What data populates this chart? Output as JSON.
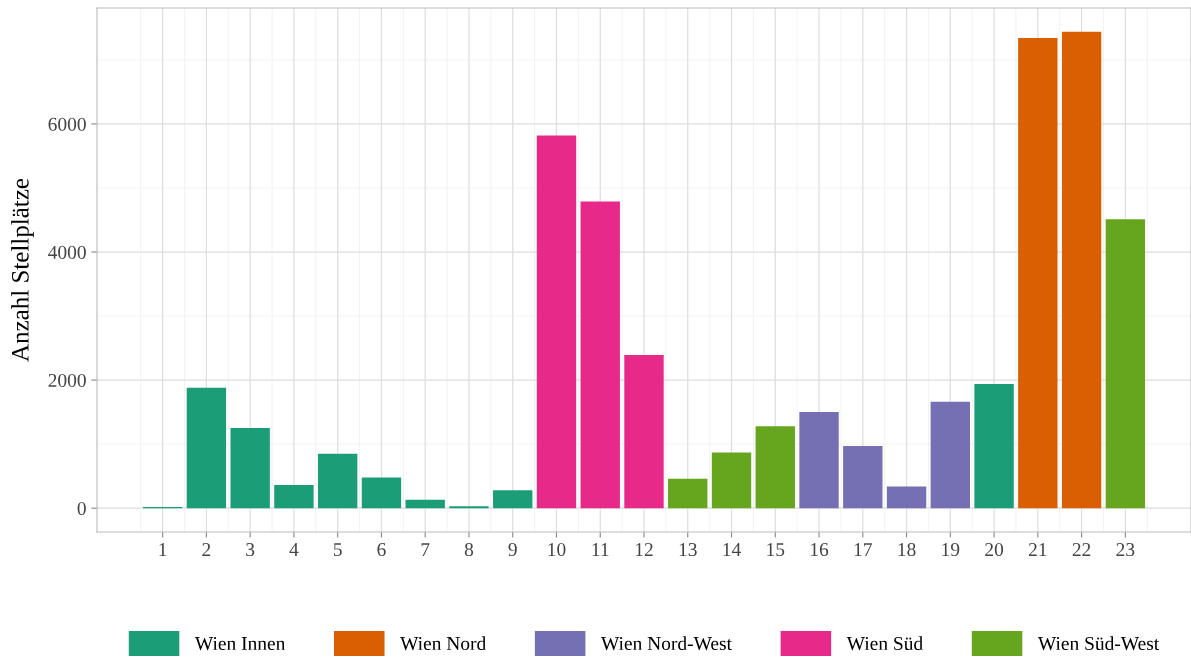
{
  "chart_data": {
    "type": "bar",
    "ylabel": "Anzahl Stellplätze",
    "xlim": [
      -0.5,
      24.5
    ],
    "ylim": [
      -372,
      7810
    ],
    "xticks": [
      1,
      2,
      3,
      4,
      5,
      6,
      7,
      8,
      9,
      10,
      11,
      12,
      13,
      14,
      15,
      16,
      17,
      18,
      19,
      20,
      21,
      22,
      23
    ],
    "yticks": [
      0,
      2000,
      4000,
      6000
    ],
    "grid": true,
    "legend": "bottom",
    "series": [
      {
        "name": "Wien Innen",
        "color": "#1b9e77",
        "x": [
          1,
          2,
          3,
          4,
          5,
          6,
          7,
          8,
          9,
          20
        ],
        "values": [
          20,
          1880,
          1250,
          360,
          850,
          480,
          130,
          30,
          280,
          1940
        ]
      },
      {
        "name": "Wien Nord",
        "color": "#d95f02",
        "x": [
          21,
          22
        ],
        "values": [
          7340,
          7440
        ]
      },
      {
        "name": "Wien Nord-West",
        "color": "#7570b3",
        "x": [
          16,
          17,
          18,
          19
        ],
        "values": [
          1500,
          970,
          340,
          1660
        ]
      },
      {
        "name": "Wien Süd",
        "color": "#e7298a",
        "x": [
          10,
          11,
          12
        ],
        "values": [
          5820,
          4790,
          2390
        ]
      },
      {
        "name": "Wien Süd-West",
        "color": "#66a61e",
        "x": [
          13,
          14,
          15,
          23
        ],
        "values": [
          460,
          870,
          1280,
          4510
        ]
      }
    ]
  }
}
